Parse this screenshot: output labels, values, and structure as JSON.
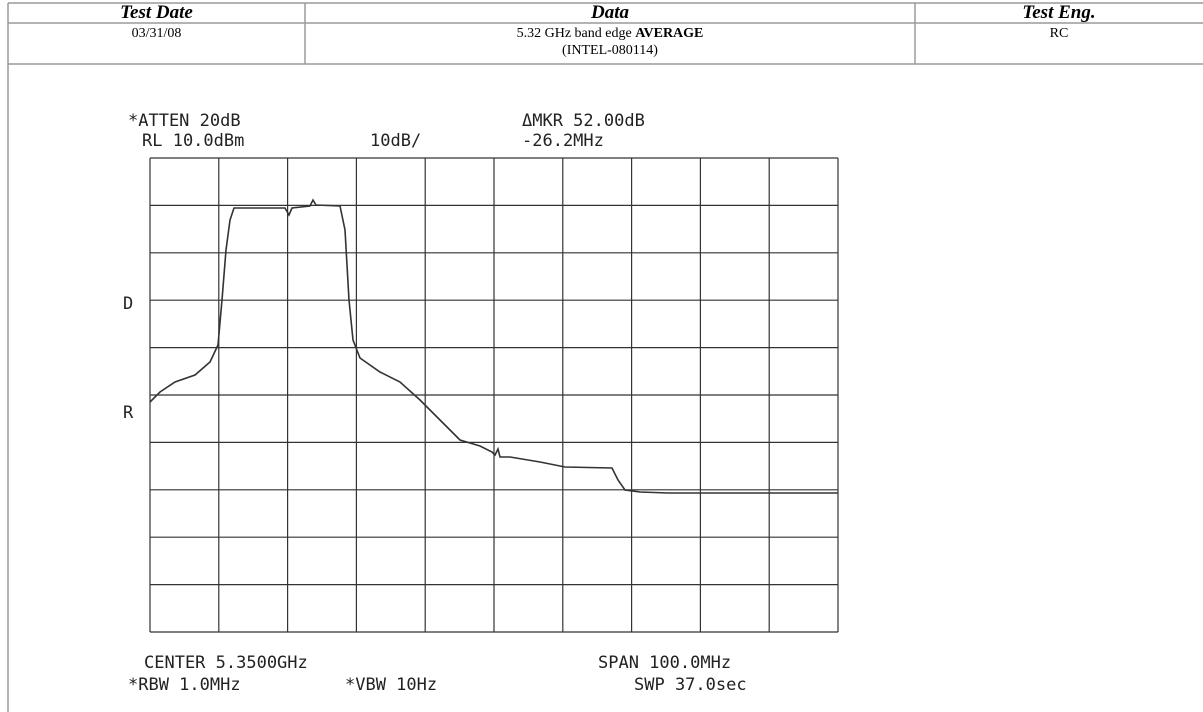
{
  "table": {
    "header": [
      "Test Date",
      "Data",
      "Test Eng."
    ],
    "row": {
      "date": "03/31/08",
      "data": {
        "text": "5.32 GHz band edge",
        "emphasis": "AVERAGE",
        "reference": "(INTEL-080114)"
      },
      "engineer": "RC"
    }
  },
  "plot": {
    "atten": "*ATTEN 20dB",
    "ref_level": "RL 10.0dBm",
    "scale": "10dB/",
    "marker": "ΔMKR 52.00dB",
    "marker_freq": "-26.2MHz",
    "left_marks": [
      "D",
      "R"
    ],
    "center": "CENTER 5.3500GHz",
    "span": "SPAN 100.0MHz",
    "rbw": "*RBW 1.0MHz",
    "vbw": "*VBW 10Hz",
    "sweep": "SWP 37.0sec"
  }
}
